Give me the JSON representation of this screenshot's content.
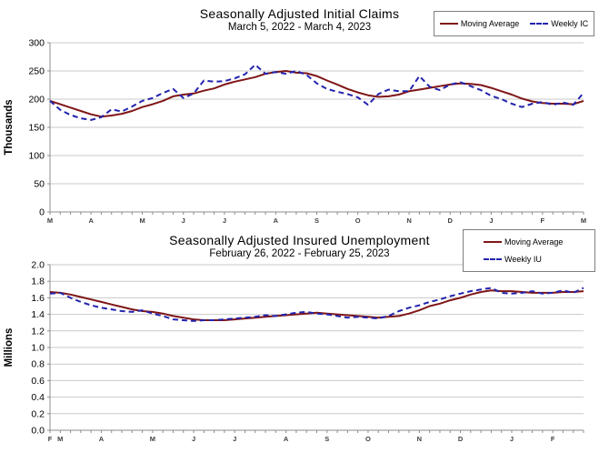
{
  "page": {
    "background": "#ffffff"
  },
  "colors": {
    "moving_average": "#7f1616",
    "weekly": "#2323ad",
    "gridline": "#c9c9c9",
    "axis": "#8c8c8c",
    "xtick_text": "#404040"
  },
  "chart_data": [
    {
      "type": "line",
      "title": "Seasonally Adjusted Initial Claims",
      "subtitle": "March 5, 2022 - March 4, 2023",
      "ylabel": "Thousands",
      "ymin": 0,
      "ymax": 300,
      "ystep": 50,
      "ytick_values": [
        300,
        250,
        200,
        150,
        100,
        50,
        0
      ],
      "ytick_labels": [
        "300",
        "250",
        "200",
        "150",
        "100",
        "50",
        "0"
      ],
      "xtick_labels": [
        "M",
        "A",
        "M",
        "J",
        "J",
        "A",
        "S",
        "O",
        "N",
        "D",
        "J",
        "F",
        "M"
      ],
      "xtick_positions": [
        0,
        4,
        9,
        13,
        17,
        22,
        26,
        30,
        35,
        39,
        43,
        48,
        52
      ],
      "grid": true,
      "legend_position": "top-right",
      "series": [
        {
          "name": "Moving Average",
          "color": "#7f1616",
          "style": "solid",
          "values": [
            197,
            191,
            185,
            179,
            173,
            169,
            171,
            174,
            179,
            186,
            191,
            197,
            205,
            208,
            210,
            215,
            219,
            226,
            231,
            235,
            239,
            245,
            248,
            250,
            247,
            246,
            241,
            233,
            226,
            218,
            212,
            207,
            204,
            205,
            208,
            214,
            217,
            220,
            223,
            226,
            228,
            227,
            225,
            220,
            214,
            208,
            201,
            196,
            193,
            192,
            192,
            191,
            197
          ]
        },
        {
          "name": "Weekly IC",
          "color": "#2323ad",
          "style": "dashed",
          "values": [
            197,
            181,
            172,
            166,
            163,
            168,
            182,
            178,
            187,
            197,
            202,
            211,
            218,
            202,
            210,
            233,
            231,
            232,
            237,
            244,
            261,
            245,
            248,
            245,
            250,
            243,
            228,
            218,
            213,
            209,
            203,
            190,
            209,
            217,
            214,
            214,
            241,
            222,
            216,
            226,
            230,
            223,
            216,
            206,
            200,
            192,
            186,
            192,
            195,
            190,
            194,
            190,
            211
          ]
        }
      ]
    },
    {
      "type": "line",
      "title": "Seasonally Adjusted Insured Unemployment",
      "subtitle": "February 26, 2022 - February 25, 2023",
      "ylabel": "Millions",
      "ymin": 0,
      "ymax": 2.0,
      "ystep": 0.2,
      "ytick_values": [
        2.0,
        1.8,
        1.6,
        1.4,
        1.2,
        1.0,
        0.8,
        0.6,
        0.4,
        0.2,
        0
      ],
      "ytick_labels": [
        "2.0",
        "1.8",
        "1.6",
        "1.4",
        "1.2",
        "1.0",
        "0.8",
        "0.6",
        "0.4",
        "0.2",
        "0.0"
      ],
      "xtick_labels": [
        "F",
        "M",
        "A",
        "M",
        "J",
        "J",
        "A",
        "S",
        "O",
        "N",
        "D",
        "J",
        "F"
      ],
      "xtick_positions": [
        0,
        1,
        5,
        10,
        14,
        18,
        23,
        27,
        31,
        36,
        40,
        45,
        49
      ],
      "grid": true,
      "legend_position": "top-right",
      "series": [
        {
          "name": "Moving Average",
          "color": "#7f1616",
          "style": "solid",
          "values": [
            1.67,
            1.66,
            1.64,
            1.61,
            1.58,
            1.55,
            1.52,
            1.49,
            1.46,
            1.44,
            1.43,
            1.41,
            1.38,
            1.36,
            1.34,
            1.33,
            1.33,
            1.33,
            1.34,
            1.35,
            1.36,
            1.37,
            1.38,
            1.39,
            1.4,
            1.41,
            1.42,
            1.41,
            1.4,
            1.39,
            1.38,
            1.37,
            1.36,
            1.37,
            1.38,
            1.41,
            1.45,
            1.5,
            1.53,
            1.57,
            1.6,
            1.64,
            1.67,
            1.69,
            1.68,
            1.68,
            1.67,
            1.66,
            1.66,
            1.66,
            1.67,
            1.67,
            1.68
          ]
        },
        {
          "name": "Weekly IU",
          "color": "#2323ad",
          "style": "dashed",
          "values": [
            1.65,
            1.66,
            1.6,
            1.55,
            1.51,
            1.48,
            1.46,
            1.44,
            1.43,
            1.45,
            1.41,
            1.38,
            1.34,
            1.33,
            1.32,
            1.33,
            1.33,
            1.34,
            1.35,
            1.36,
            1.37,
            1.39,
            1.38,
            1.4,
            1.42,
            1.43,
            1.41,
            1.4,
            1.38,
            1.36,
            1.37,
            1.36,
            1.35,
            1.38,
            1.44,
            1.48,
            1.51,
            1.55,
            1.58,
            1.62,
            1.65,
            1.68,
            1.7,
            1.72,
            1.66,
            1.65,
            1.66,
            1.68,
            1.65,
            1.66,
            1.69,
            1.66,
            1.72
          ]
        }
      ]
    }
  ]
}
